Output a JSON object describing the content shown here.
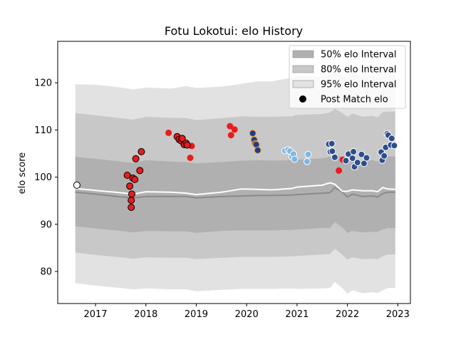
{
  "chart_data": {
    "type": "scatter",
    "title": "Fotu Lokotui: elo History",
    "xlabel": "",
    "ylabel": "elo score",
    "xlim": [
      2016.25,
      2023.25
    ],
    "ylim": [
      73.2,
      128.8
    ],
    "x_ticks": [
      2017,
      2018,
      2019,
      2020,
      2021,
      2022,
      2023
    ],
    "y_ticks": [
      80,
      90,
      100,
      110,
      120
    ],
    "grid": false,
    "legend_placement": "top-right",
    "legend": [
      {
        "label": "50% elo Interval",
        "kind": "band",
        "color": "#b0b0b0"
      },
      {
        "label": "80% elo Interval",
        "kind": "band",
        "color": "#c8c8c8"
      },
      {
        "label": "95% elo Interval",
        "kind": "band",
        "color": "#e2e2e2"
      },
      {
        "label": "Post Match elo",
        "kind": "marker",
        "color": "#000000"
      }
    ],
    "band_x": [
      2016.6,
      2017.0,
      2017.5,
      2017.75,
      2018.0,
      2018.5,
      2018.8,
      2019.0,
      2019.5,
      2019.9,
      2020.2,
      2020.5,
      2020.9,
      2021.0,
      2021.5,
      2021.65,
      2021.75,
      2021.9,
      2022.0,
      2022.1,
      2022.3,
      2022.5,
      2022.6,
      2022.7,
      2022.8,
      2022.95
    ],
    "median": [
      96.8,
      96.4,
      95.8,
      95.6,
      95.9,
      95.9,
      95.9,
      95.6,
      95.9,
      96.0,
      96.1,
      96.1,
      96.2,
      96.3,
      96.6,
      96.7,
      97.8,
      96.8,
      95.8,
      96.4,
      95.9,
      96.0,
      95.8,
      96.5,
      96.8,
      96.8
    ],
    "mean_line": [
      97.6,
      97.2,
      96.7,
      96.4,
      96.9,
      96.8,
      96.6,
      96.3,
      96.8,
      97.5,
      97.4,
      97.3,
      97.6,
      97.9,
      98.3,
      98.8,
      98.5,
      97.0,
      97.0,
      97.3,
      97.1,
      97.1,
      96.9,
      97.8,
      97.5,
      97.4
    ],
    "band50": {
      "upper": [
        104.3,
        103.9,
        103.3,
        103.0,
        103.6,
        103.3,
        103.2,
        102.9,
        103.2,
        103.5,
        103.6,
        103.5,
        103.6,
        103.7,
        104.0,
        104.3,
        105.0,
        104.2,
        103.6,
        104.0,
        103.5,
        103.6,
        103.3,
        104.1,
        104.4,
        104.4
      ],
      "lower": [
        89.6,
        89.1,
        88.6,
        88.3,
        88.6,
        88.5,
        88.5,
        88.2,
        88.6,
        88.7,
        88.7,
        88.7,
        88.8,
        88.9,
        89.2,
        89.2,
        90.5,
        89.3,
        88.2,
        88.6,
        88.3,
        88.4,
        88.4,
        88.9,
        89.2,
        89.2
      ]
    },
    "band80": {
      "upper": [
        113.6,
        113.1,
        112.5,
        112.2,
        112.8,
        112.6,
        112.5,
        112.1,
        112.5,
        112.9,
        112.8,
        112.8,
        112.9,
        113.2,
        113.4,
        113.7,
        114.5,
        113.6,
        112.8,
        113.5,
        112.8,
        113.0,
        112.7,
        113.8,
        113.9,
        113.9
      ],
      "lower": [
        84.0,
        83.5,
        83.0,
        82.7,
        83.0,
        82.9,
        82.9,
        82.6,
        82.9,
        83.1,
        83.1,
        83.1,
        83.2,
        83.3,
        83.6,
        83.7,
        84.8,
        83.6,
        82.5,
        83.0,
        82.6,
        82.7,
        82.6,
        83.2,
        83.6,
        83.6
      ]
    },
    "band95": {
      "upper": [
        119.7,
        119.6,
        119.0,
        118.6,
        119.0,
        118.8,
        119.3,
        118.9,
        119.2,
        119.8,
        120.3,
        120.3,
        121.1,
        121.5,
        121.3,
        121.7,
        122.7,
        121.5,
        121.2,
        122.3,
        121.5,
        121.6,
        120.9,
        123.3,
        123.5,
        123.5
      ],
      "lower": [
        77.5,
        77.0,
        76.5,
        76.2,
        76.4,
        76.2,
        76.2,
        75.8,
        76.1,
        76.3,
        76.3,
        76.3,
        76.4,
        76.3,
        76.4,
        76.5,
        77.8,
        76.5,
        75.3,
        76.0,
        75.4,
        75.6,
        75.4,
        76.0,
        76.5,
        76.5
      ]
    },
    "series": [
      {
        "color": "#e81c1c",
        "edge": "#000000",
        "points": [
          {
            "x": 2016.63,
            "y": 98.3,
            "color": "#ffffff"
          },
          {
            "x": 2017.63,
            "y": 100.4
          },
          {
            "x": 2017.68,
            "y": 98.1
          },
          {
            "x": 2017.71,
            "y": 95.1
          },
          {
            "x": 2017.71,
            "y": 93.6
          },
          {
            "x": 2017.72,
            "y": 96.4
          },
          {
            "x": 2017.74,
            "y": 99.8
          },
          {
            "x": 2017.78,
            "y": 99.5
          },
          {
            "x": 2017.8,
            "y": 103.9
          },
          {
            "x": 2017.88,
            "y": 101.4
          },
          {
            "x": 2017.91,
            "y": 105.4
          }
        ]
      },
      {
        "color": "#e81c1c",
        "edge": "none",
        "points": [
          {
            "x": 2018.45,
            "y": 109.4
          },
          {
            "x": 2018.88,
            "y": 104.1
          },
          {
            "x": 2018.91,
            "y": 106.6
          },
          {
            "x": 2019.67,
            "y": 110.8
          },
          {
            "x": 2019.69,
            "y": 108.9
          },
          {
            "x": 2019.76,
            "y": 110.1
          },
          {
            "x": 2021.83,
            "y": 101.4
          },
          {
            "x": 2021.91,
            "y": 103.7
          }
        ]
      },
      {
        "color": "#e81c1c",
        "edge": "#000000",
        "points": [
          {
            "x": 2018.62,
            "y": 108.6
          },
          {
            "x": 2018.66,
            "y": 108.0
          },
          {
            "x": 2018.7,
            "y": 107.7
          },
          {
            "x": 2018.72,
            "y": 108.2
          },
          {
            "x": 2018.76,
            "y": 106.9
          },
          {
            "x": 2018.8,
            "y": 107.2
          },
          {
            "x": 2018.82,
            "y": 106.8
          }
        ]
      },
      {
        "color": "#1f3a93",
        "edge": "#f5a623",
        "points": [
          {
            "x": 2020.12,
            "y": 109.3
          },
          {
            "x": 2020.15,
            "y": 107.9
          },
          {
            "x": 2020.17,
            "y": 107.1
          },
          {
            "x": 2020.19,
            "y": 106.9
          },
          {
            "x": 2020.22,
            "y": 105.7
          }
        ]
      },
      {
        "color": "#7eb6e6",
        "edge": "#ffffff",
        "points": [
          {
            "x": 2020.76,
            "y": 105.6
          },
          {
            "x": 2020.82,
            "y": 105.8
          },
          {
            "x": 2020.86,
            "y": 105.5
          },
          {
            "x": 2020.9,
            "y": 104.4
          },
          {
            "x": 2020.93,
            "y": 104.9
          },
          {
            "x": 2020.95,
            "y": 103.8
          },
          {
            "x": 2021.2,
            "y": 103.3
          },
          {
            "x": 2021.22,
            "y": 104.8
          }
        ]
      },
      {
        "color": "#2d4d8c",
        "edge": "#ffffff",
        "points": [
          {
            "x": 2021.63,
            "y": 107.0
          },
          {
            "x": 2021.66,
            "y": 105.4
          },
          {
            "x": 2021.69,
            "y": 107.1
          },
          {
            "x": 2021.7,
            "y": 105.5
          },
          {
            "x": 2021.75,
            "y": 104.2
          },
          {
            "x": 2021.97,
            "y": 103.5
          },
          {
            "x": 2022.02,
            "y": 104.9
          },
          {
            "x": 2022.1,
            "y": 104.0
          },
          {
            "x": 2022.12,
            "y": 105.4
          },
          {
            "x": 2022.14,
            "y": 102.2
          },
          {
            "x": 2022.2,
            "y": 103.1
          },
          {
            "x": 2022.28,
            "y": 104.8
          },
          {
            "x": 2022.33,
            "y": 102.9
          },
          {
            "x": 2022.38,
            "y": 104.1
          },
          {
            "x": 2022.67,
            "y": 105.3
          },
          {
            "x": 2022.69,
            "y": 103.6
          },
          {
            "x": 2022.73,
            "y": 104.5
          },
          {
            "x": 2022.76,
            "y": 106.3
          },
          {
            "x": 2022.79,
            "y": 109.2
          },
          {
            "x": 2022.81,
            "y": 108.9
          },
          {
            "x": 2022.86,
            "y": 106.8
          },
          {
            "x": 2022.88,
            "y": 108.2
          },
          {
            "x": 2022.93,
            "y": 106.7
          }
        ]
      }
    ],
    "colors": {
      "median_line": "#8a8a8a",
      "mean_line": "#ffffff",
      "axes": "#000000"
    }
  }
}
